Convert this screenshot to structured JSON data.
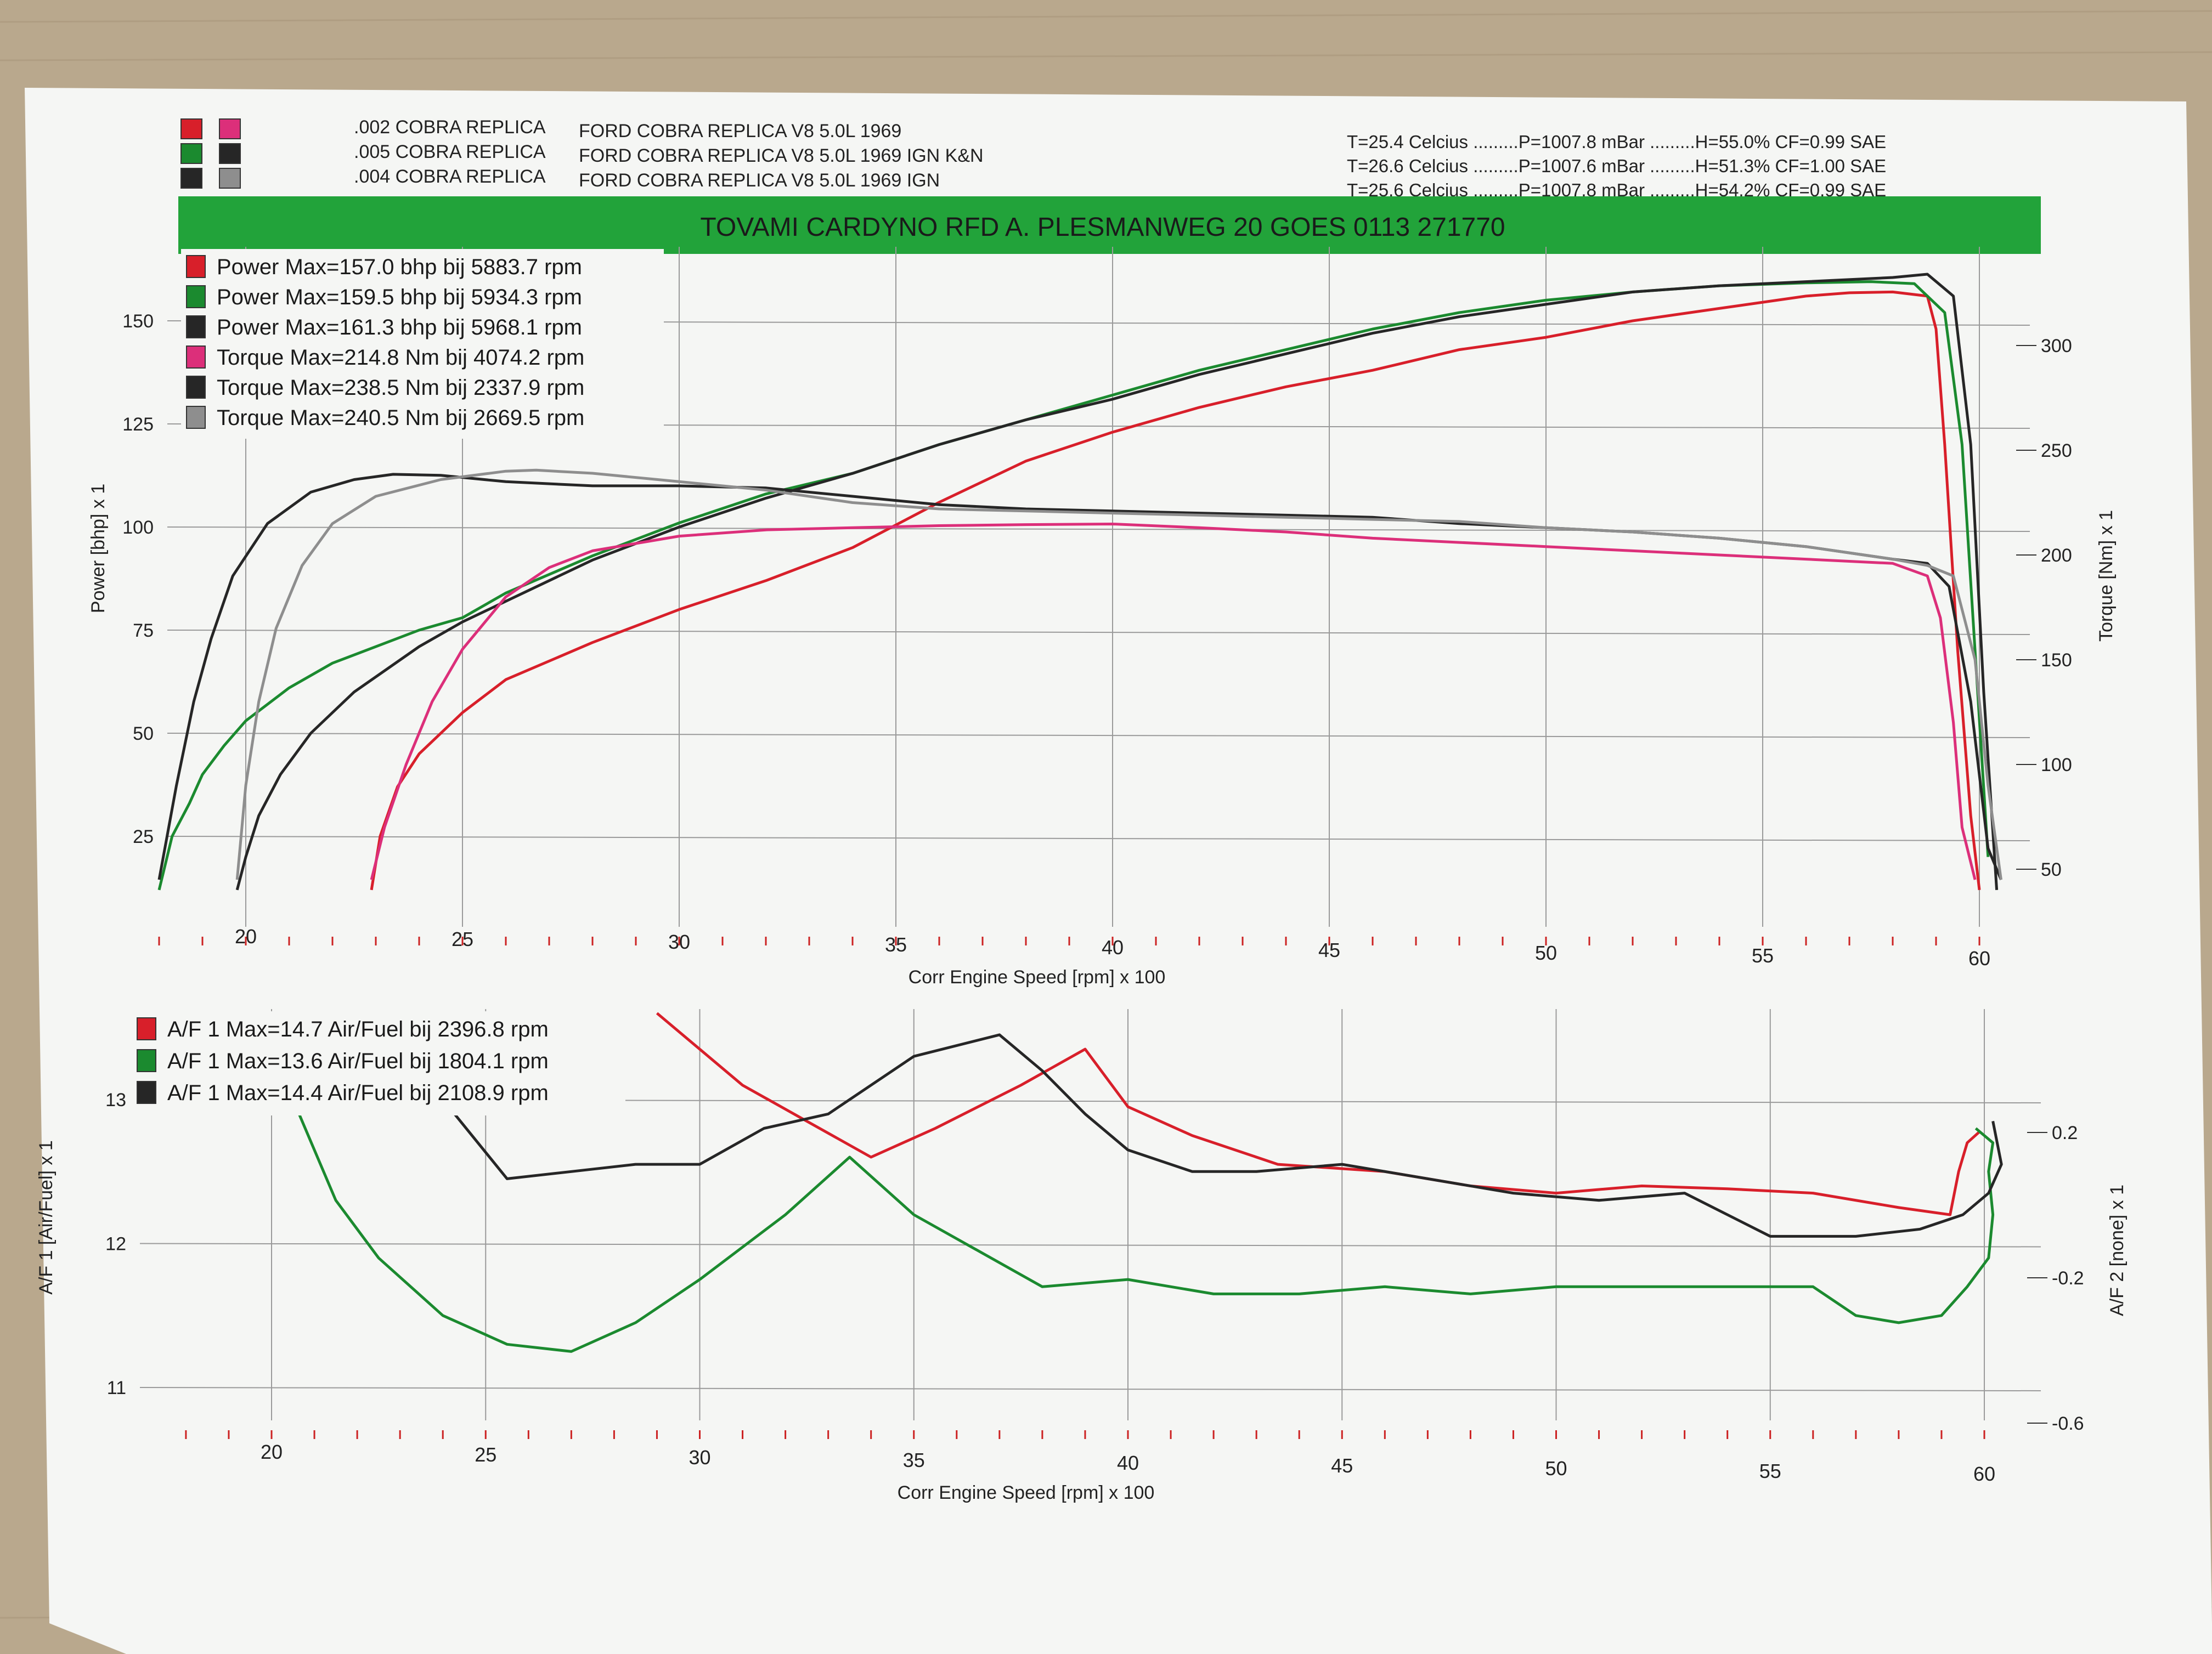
{
  "header": {
    "runs": [
      {
        "id": ".002 COBRA REPLICA",
        "desc": "FORD COBRA REPLICA V8 5.0L 1969",
        "conditions": "T=25.4 Celcius .........P=1007.8 mBar .........H=55.0% CF=0.99 SAE",
        "swatches": [
          "#d81f2a",
          "#dc2f7a"
        ]
      },
      {
        "id": ".005 COBRA REPLICA",
        "desc": "FORD COBRA REPLICA V8 5.0L 1969 IGN K&N",
        "conditions": "T=26.6 Celcius .........P=1007.6 mBar .........H=51.3% CF=1.00 SAE",
        "swatches": [
          "#1b8a2f",
          "#262626"
        ]
      },
      {
        "id": ".004 COBRA REPLICA",
        "desc": "FORD COBRA REPLICA V8 5.0L 1969 IGN",
        "conditions": "T=25.6 Celcius .........P=1007.8 mBar .........H=54.2% CF=0.99 SAE",
        "swatches": [
          "#262626",
          "#8e8e8e"
        ]
      }
    ],
    "banner": "TOVAMI CARDYNO RFD  A. PLESMANWEG 20 GOES 0113 271770",
    "banner_color": "#22a33a"
  },
  "colors": {
    "red": "#d81f2a",
    "green": "#1b8a2f",
    "black": "#262626",
    "magenta": "#dc2f7a",
    "gray": "#8e8e8e"
  },
  "chart_data": [
    {
      "type": "line",
      "ylabel": "Power [bhp] x 1",
      "y2label": "Torque [Nm] x 1",
      "xlabel": "Corr Engine Speed [rpm] x 100",
      "xlim": [
        18,
        60.5
      ],
      "ylim": [
        10,
        160
      ],
      "y2lim": [
        40,
        330
      ],
      "xticks": [
        20,
        25,
        30,
        35,
        40,
        45,
        50,
        55,
        60
      ],
      "yticks": [
        25,
        50,
        75,
        100,
        125,
        150
      ],
      "y2ticks": [
        50,
        100,
        150,
        200,
        250,
        300
      ],
      "legend": [
        "Power  Max=157.0 bhp bij 5883.7 rpm",
        "Power  Max=159.5 bhp bij 5934.3 rpm",
        "Power  Max=161.3 bhp bij 5968.1 rpm",
        "Torque  Max=214.8 Nm bij 4074.2 rpm",
        "Torque  Max=238.5 Nm bij 2337.9 rpm",
        "Torque  Max=240.5 Nm bij 2669.5 rpm"
      ],
      "series": [
        {
          "axis": "left",
          "color": "red",
          "x": [
            22.9,
            23.1,
            23.5,
            24.0,
            25.0,
            26.0,
            28.0,
            30.0,
            32.0,
            34.0,
            36.0,
            38.0,
            40.0,
            42.0,
            44.0,
            46.0,
            48.0,
            50.0,
            52.0,
            54.0,
            56.0,
            57.0,
            58.0,
            58.8,
            59.0,
            59.2,
            59.5,
            59.8,
            60.0
          ],
          "y": [
            12,
            25,
            37,
            45,
            55,
            63,
            72,
            80,
            87,
            95,
            106,
            116,
            123,
            129,
            134,
            138,
            143,
            146,
            150,
            153,
            156,
            156.8,
            157,
            156,
            148,
            120,
            70,
            30,
            12
          ]
        },
        {
          "axis": "left",
          "color": "green",
          "x": [
            18.0,
            18.3,
            18.7,
            19.0,
            19.5,
            20.0,
            21.0,
            22.0,
            24.0,
            25.0,
            26.0,
            28.0,
            30.0,
            32.0,
            34.0,
            36.0,
            38.0,
            40.0,
            42.0,
            44.0,
            46.0,
            48.0,
            50.0,
            52.0,
            54.0,
            56.0,
            57.5,
            58.5,
            59.2,
            59.6,
            59.9,
            60.2
          ],
          "y": [
            12,
            25,
            33,
            40,
            47,
            53,
            61,
            67,
            75,
            78,
            84,
            93,
            101,
            108,
            113,
            120,
            126,
            132,
            138,
            143,
            148,
            152,
            155,
            157,
            158.5,
            159.2,
            159.5,
            159,
            152,
            120,
            70,
            20
          ]
        },
        {
          "axis": "left",
          "color": "black",
          "x": [
            19.8,
            20.0,
            20.3,
            20.8,
            21.5,
            22.5,
            24.0,
            25.0,
            26.0,
            28.0,
            30.0,
            32.0,
            34.0,
            36.0,
            38.0,
            40.0,
            42.0,
            44.0,
            46.0,
            48.0,
            50.0,
            52.0,
            54.0,
            56.0,
            58.0,
            58.8,
            59.4,
            59.8,
            60.1,
            60.4
          ],
          "y": [
            12,
            20,
            30,
            40,
            50,
            60,
            71,
            77,
            82,
            92,
            100,
            107,
            113,
            120,
            126,
            131,
            137,
            142,
            147,
            151,
            154,
            157,
            158.5,
            159.5,
            160.5,
            161.3,
            156,
            120,
            60,
            12
          ]
        },
        {
          "axis": "right",
          "color": "magenta",
          "x": [
            22.9,
            23.2,
            23.7,
            24.3,
            25.0,
            26.0,
            27.0,
            28.0,
            30.0,
            32.0,
            34.0,
            36.0,
            38.0,
            40.0,
            42.0,
            44.0,
            46.0,
            48.0,
            50.0,
            52.0,
            54.0,
            56.0,
            58.0,
            58.8,
            59.1,
            59.4,
            59.6,
            59.9
          ],
          "y": [
            45,
            70,
            100,
            130,
            155,
            180,
            194,
            202,
            209,
            212,
            213,
            214,
            214.5,
            214.8,
            213,
            211,
            208,
            206,
            204,
            202,
            200,
            198,
            196,
            190,
            170,
            120,
            70,
            45
          ]
        },
        {
          "axis": "right",
          "color": "black",
          "x": [
            18.0,
            18.4,
            18.8,
            19.2,
            19.7,
            20.5,
            21.5,
            22.5,
            23.4,
            24.5,
            26.0,
            28.0,
            30.0,
            32.0,
            34.0,
            36.0,
            38.0,
            40.0,
            42.0,
            44.0,
            46.0,
            48.0,
            50.0,
            52.0,
            54.0,
            56.0,
            58.0,
            58.8,
            59.3,
            59.8,
            60.2,
            60.5
          ],
          "y": [
            45,
            90,
            130,
            160,
            190,
            215,
            230,
            236,
            238.5,
            238,
            235,
            233,
            233,
            232,
            228,
            224,
            222,
            221,
            220,
            219,
            218,
            215,
            213,
            211,
            208,
            204,
            198,
            196,
            185,
            130,
            60,
            45
          ]
        },
        {
          "axis": "right",
          "color": "gray",
          "x": [
            19.8,
            20.0,
            20.3,
            20.7,
            21.3,
            22.0,
            23.0,
            24.5,
            26.0,
            26.7,
            28.0,
            30.0,
            32.0,
            34.0,
            36.0,
            38.0,
            40.0,
            42.0,
            44.0,
            46.0,
            48.0,
            50.0,
            52.0,
            54.0,
            56.0,
            58.0,
            58.8,
            59.4,
            59.9,
            60.2,
            60.5
          ],
          "y": [
            45,
            90,
            130,
            165,
            195,
            215,
            228,
            236,
            240,
            240.5,
            239,
            235,
            231,
            225,
            222,
            221,
            220,
            219,
            218,
            217,
            216,
            213,
            211,
            208,
            204,
            198,
            195,
            190,
            150,
            90,
            45
          ]
        }
      ]
    },
    {
      "type": "line",
      "ylabel": "A/F 1 [Air/Fuel] x 1",
      "y2label": "A/F 2 [none] x 1",
      "xlabel": "Corr Engine Speed [rpm] x 100",
      "xlim": [
        18,
        60.5
      ],
      "ylim": [
        10.8,
        13.6
      ],
      "y2lim": [
        -0.64,
        0.45
      ],
      "xticks": [
        20,
        25,
        30,
        35,
        40,
        45,
        50,
        55,
        60
      ],
      "yticks": [
        11,
        12,
        13
      ],
      "y2ticks": [
        0.2,
        -0.2,
        -0.6
      ],
      "legend": [
        "A/F 1  Max=14.7 Air/Fuel bij 2396.8 rpm",
        "A/F 1  Max=13.6 Air/Fuel bij 1804.1 rpm",
        "A/F 1  Max=14.4 Air/Fuel bij 2108.9 rpm"
      ],
      "series": [
        {
          "color": "red",
          "x": [
            29.0,
            31.0,
            32.5,
            34.0,
            35.5,
            37.5,
            39.0,
            40.0,
            41.5,
            43.5,
            46.0,
            48.0,
            50.0,
            52.0,
            54.0,
            56.0,
            58.0,
            59.2,
            59.4,
            59.6,
            59.9
          ],
          "y": [
            13.6,
            13.1,
            12.85,
            12.6,
            12.8,
            13.1,
            13.35,
            12.95,
            12.75,
            12.55,
            12.5,
            12.4,
            12.35,
            12.4,
            12.38,
            12.35,
            12.25,
            12.2,
            12.5,
            12.7,
            12.78
          ]
        },
        {
          "color": "green",
          "x": [
            18.0,
            19.5,
            20.5,
            21.5,
            22.5,
            24.0,
            25.5,
            27.0,
            28.5,
            30.0,
            32.0,
            33.5,
            35.0,
            36.5,
            38.0,
            40.0,
            42.0,
            44.0,
            46.0,
            48.0,
            50.0,
            52.0,
            54.0,
            56.0,
            57.0,
            58.0,
            59.0,
            59.6,
            60.1,
            60.2,
            60.1,
            60.2,
            59.8
          ],
          "y": [
            13.6,
            13.6,
            13.0,
            12.3,
            11.9,
            11.5,
            11.3,
            11.25,
            11.45,
            11.75,
            12.2,
            12.6,
            12.2,
            11.95,
            11.7,
            11.75,
            11.65,
            11.65,
            11.7,
            11.65,
            11.7,
            11.7,
            11.7,
            11.7,
            11.5,
            11.45,
            11.5,
            11.7,
            11.9,
            12.2,
            12.5,
            12.7,
            12.8
          ]
        },
        {
          "color": "black",
          "x": [
            18.0,
            22.0,
            23.0,
            24.0,
            25.5,
            27.0,
            28.5,
            30.0,
            31.5,
            33.0,
            35.0,
            37.0,
            38.0,
            39.0,
            40.0,
            41.5,
            43.0,
            45.0,
            47.0,
            49.0,
            51.0,
            53.0,
            55.0,
            57.0,
            58.5,
            59.5,
            60.1,
            60.4,
            60.2
          ],
          "y": [
            13.6,
            13.6,
            13.4,
            13.0,
            12.45,
            12.5,
            12.55,
            12.55,
            12.8,
            12.9,
            13.3,
            13.45,
            13.2,
            12.9,
            12.65,
            12.5,
            12.5,
            12.55,
            12.45,
            12.35,
            12.3,
            12.35,
            12.05,
            12.05,
            12.1,
            12.2,
            12.35,
            12.55,
            12.85
          ]
        }
      ]
    }
  ],
  "icon_names": [
    "legend-swatch"
  ]
}
